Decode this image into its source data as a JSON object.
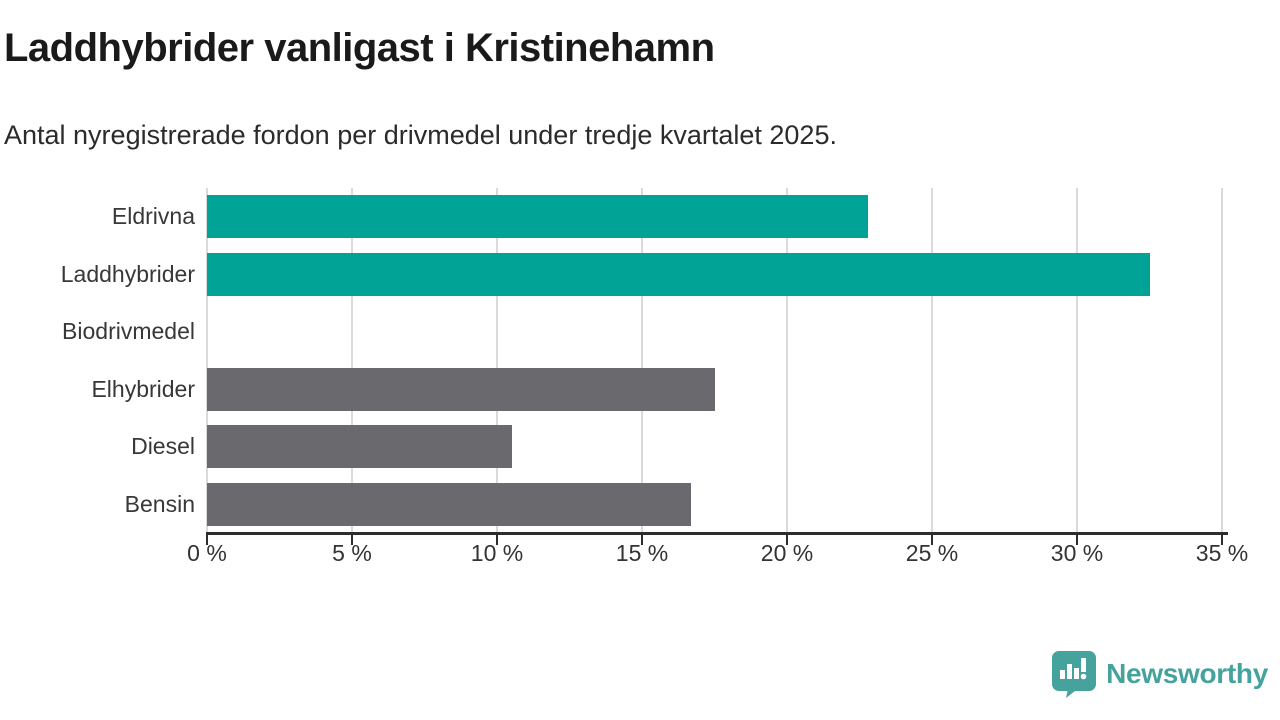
{
  "chart_data": {
    "type": "bar",
    "orientation": "horizontal",
    "title": "Laddhybrider vanligast i Kristinehamn",
    "subtitle": "Antal nyregistrerade fordon per drivmedel under tredje kvartalet 2025.",
    "categories": [
      "Eldrivna",
      "Laddhybrider",
      "Biodrivmedel",
      "Elhybrider",
      "Diesel",
      "Bensin"
    ],
    "values": [
      22.8,
      32.5,
      0,
      17.5,
      10.5,
      16.7
    ],
    "unit": "%",
    "xlabel": "",
    "ylabel": "",
    "xlim": [
      0,
      35
    ],
    "x_tick_values": [
      0,
      5,
      10,
      15,
      20,
      25,
      30,
      35
    ],
    "x_tick_labels": [
      "0 %",
      "5 %",
      "10 %",
      "15 %",
      "20 %",
      "25 %",
      "30 %",
      "35 %"
    ],
    "grid": true,
    "legend": "none",
    "highlight_color": "#00a396",
    "default_color": "#6a6a6e",
    "bar_colors": [
      "#00a396",
      "#00a396",
      "#6a6a6e",
      "#6a6a6e",
      "#6a6a6e",
      "#6a6a6e"
    ]
  },
  "branding": {
    "name": "Newsworthy",
    "color": "#45a29c",
    "icon": "newsworthy-logo-icon"
  }
}
